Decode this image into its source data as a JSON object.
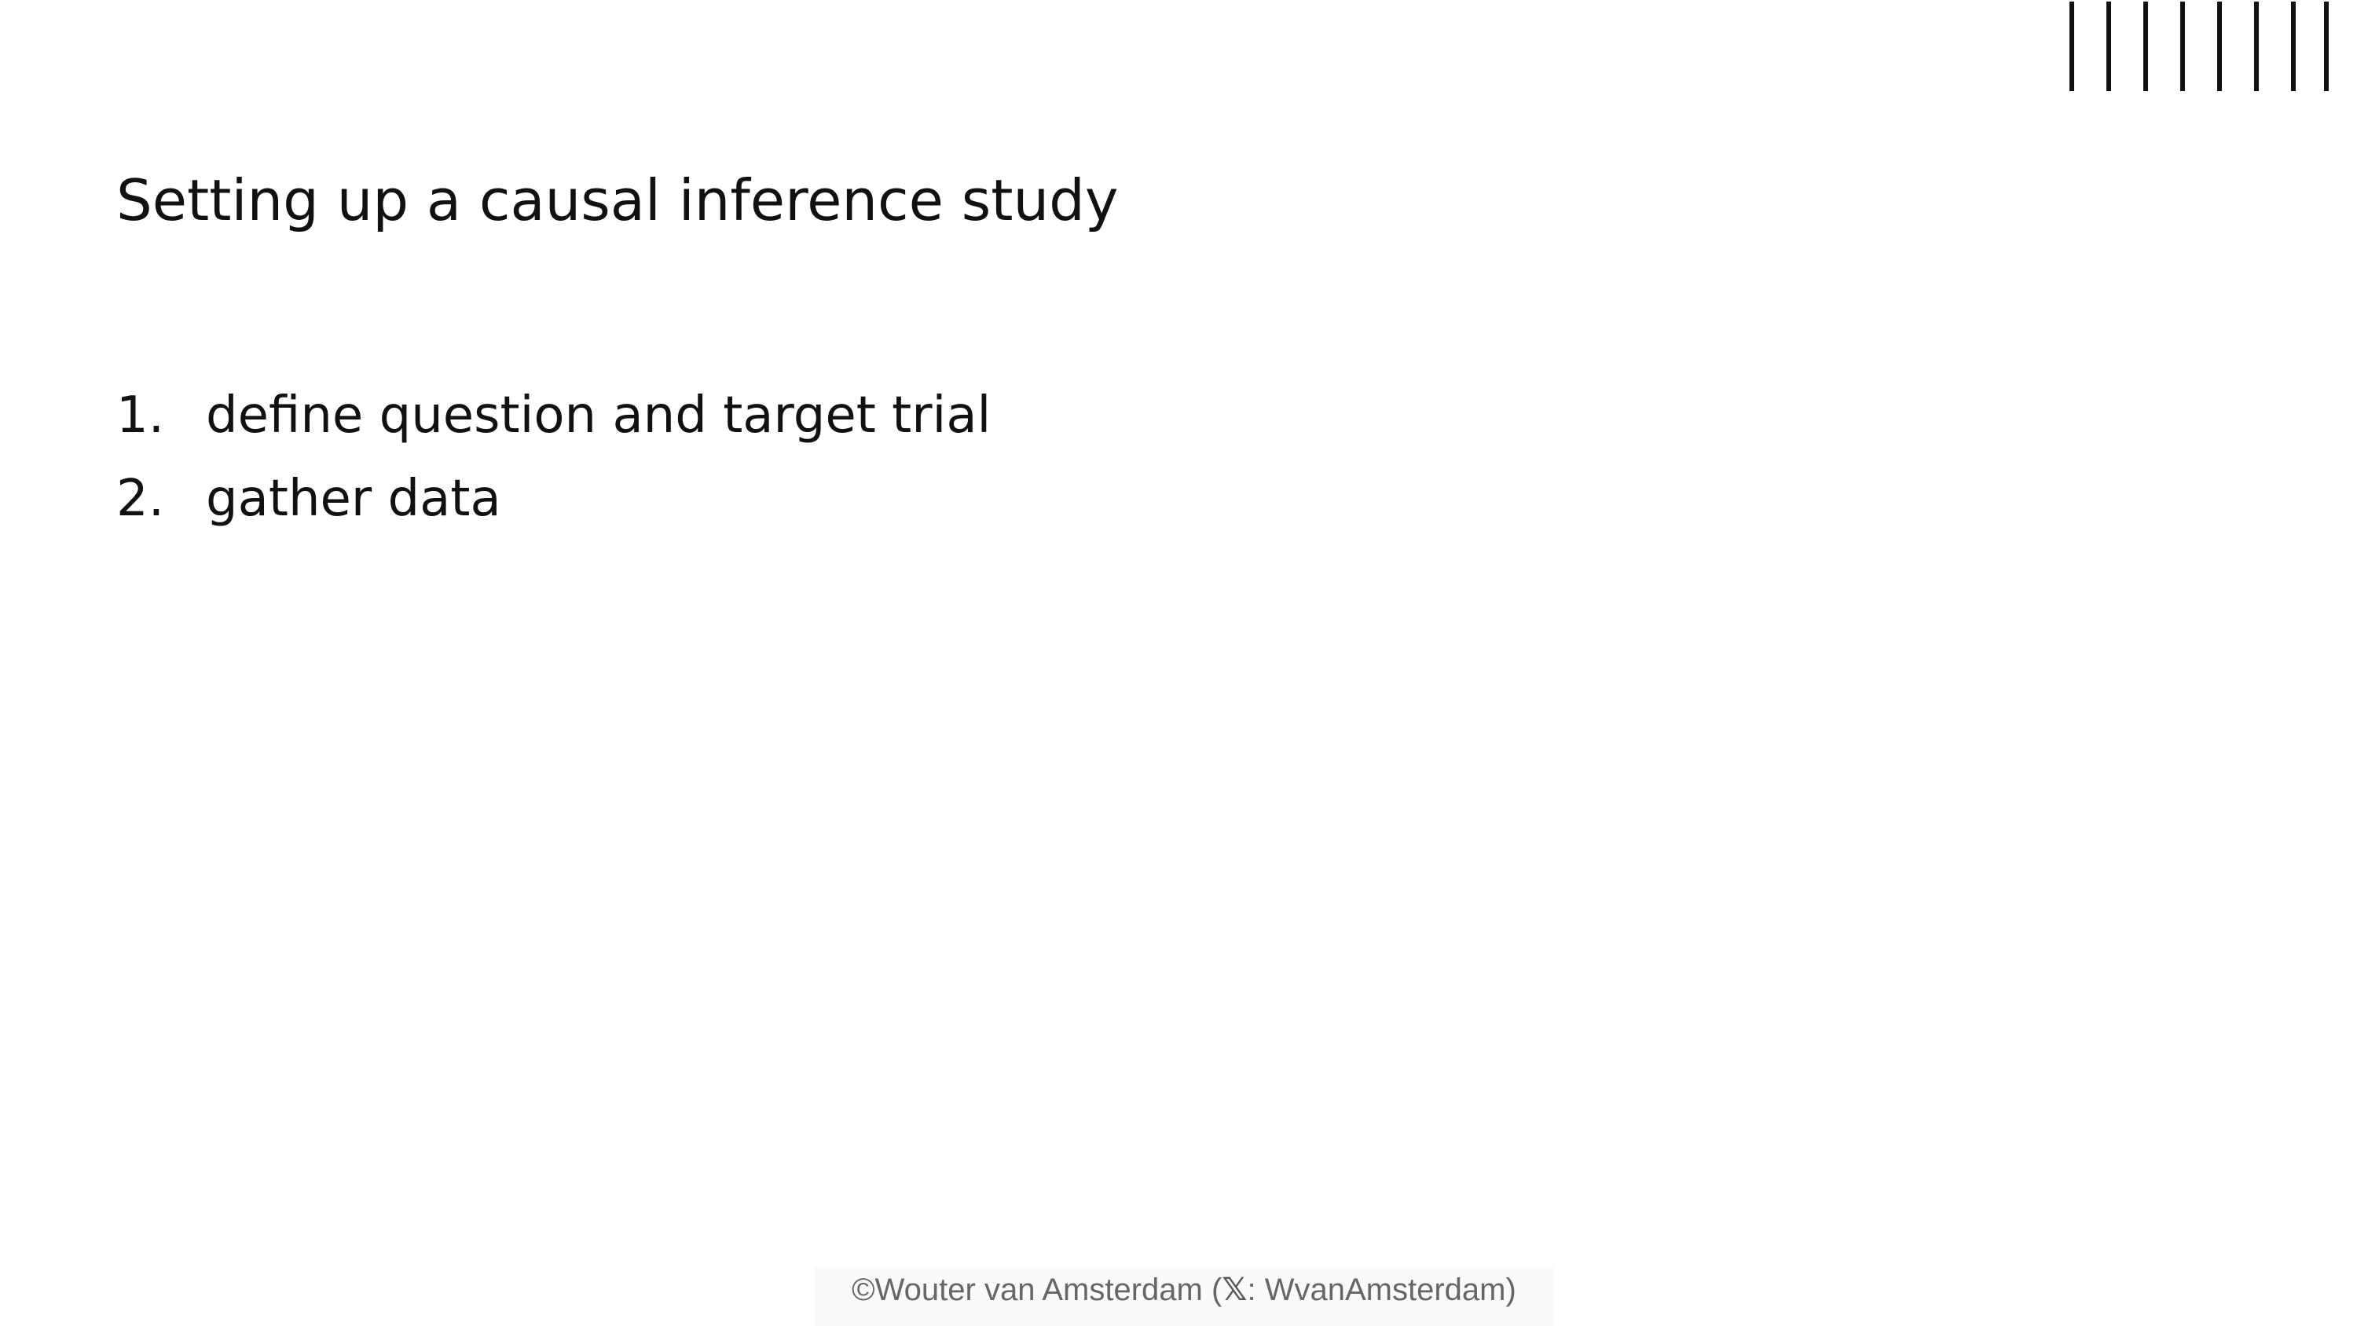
{
  "slide": {
    "title": "Setting up a causal inference study",
    "steps": [
      {
        "number": "1.",
        "text": "define question and target trial"
      },
      {
        "number": "2.",
        "text": "gather data"
      }
    ],
    "footer": {
      "prefix": "©Wouter van Amsterdam (",
      "icon": "x-logo-icon",
      "icon_glyph": "𝕏",
      "suffix": ": WvanAmsterdam)"
    },
    "decor_line_count": 8
  }
}
